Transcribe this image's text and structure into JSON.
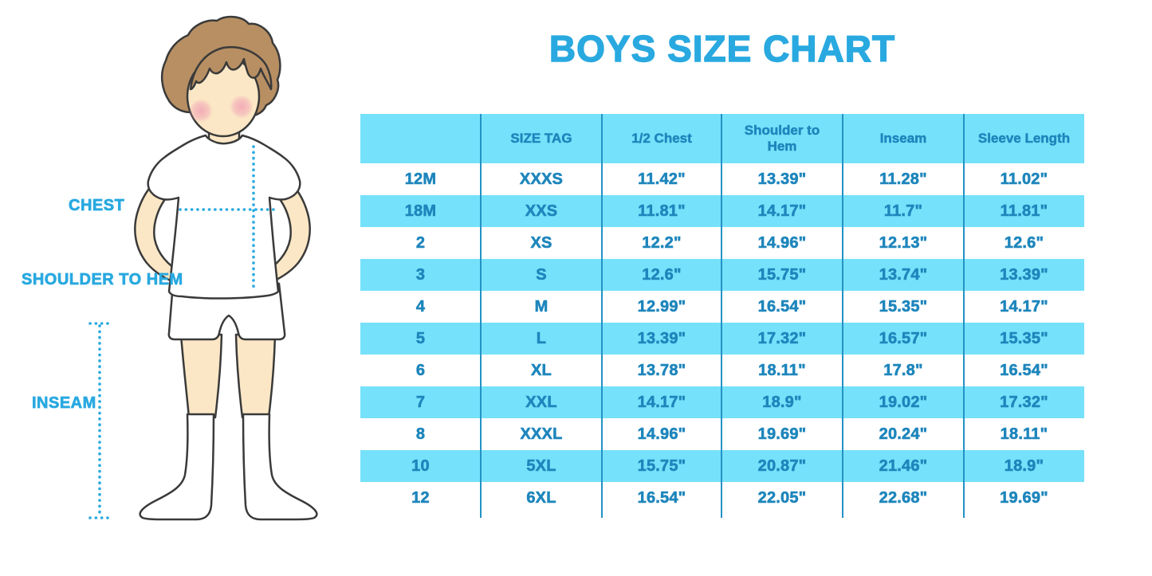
{
  "title": "BOYS SIZE CHART",
  "figure": {
    "description": "cartoon boy in white t-shirt, shorts and knee socks with dotted measurement guides",
    "labels": {
      "chest": "CHEST",
      "shoulder_to_hem": "SHOULDER TO HEM",
      "inseam": "INSEAM"
    }
  },
  "colors": {
    "accent_blue": "#29a9e0",
    "stripe_blue": "#76e1fa",
    "table_text_blue": "#1e86bc",
    "divider_blue": "#2392c5",
    "hair_brown": "#b78f63",
    "skin": "#fbe7c5",
    "cheek_pink": "#f2a6b6",
    "outline": "#3a3a3a"
  },
  "chart_data": {
    "type": "table",
    "title": "BOYS SIZE CHART",
    "columns": [
      "",
      "SIZE TAG",
      "1/2 Chest",
      "Shoulder to Hem",
      "Inseam",
      "Sleeve Length"
    ],
    "rows": [
      [
        "12M",
        "XXXS",
        "11.42\"",
        "13.39\"",
        "11.28\"",
        "11.02\""
      ],
      [
        "18M",
        "XXS",
        "11.81\"",
        "14.17\"",
        "11.7\"",
        "11.81\""
      ],
      [
        "2",
        "XS",
        "12.2\"",
        "14.96\"",
        "12.13\"",
        "12.6\""
      ],
      [
        "3",
        "S",
        "12.6\"",
        "15.75\"",
        "13.74\"",
        "13.39\""
      ],
      [
        "4",
        "M",
        "12.99\"",
        "16.54\"",
        "15.35\"",
        "14.17\""
      ],
      [
        "5",
        "L",
        "13.39\"",
        "17.32\"",
        "16.57\"",
        "15.35\""
      ],
      [
        "6",
        "XL",
        "13.78\"",
        "18.11\"",
        "17.8\"",
        "16.54\""
      ],
      [
        "7",
        "XXL",
        "14.17\"",
        "18.9\"",
        "19.02\"",
        "17.32\""
      ],
      [
        "8",
        "XXXL",
        "14.96\"",
        "19.69\"",
        "20.24\"",
        "18.11\""
      ],
      [
        "10",
        "5XL",
        "15.75\"",
        "20.87\"",
        "21.46\"",
        "18.9\""
      ],
      [
        "12",
        "6XL",
        "16.54\"",
        "22.05\"",
        "22.68\"",
        "19.69\""
      ]
    ],
    "layout": {
      "header_background": "#76e1fa",
      "striped_rows": [
        1,
        3,
        5,
        7,
        9
      ],
      "grid": "vertical column dividers only, no outer border"
    }
  }
}
